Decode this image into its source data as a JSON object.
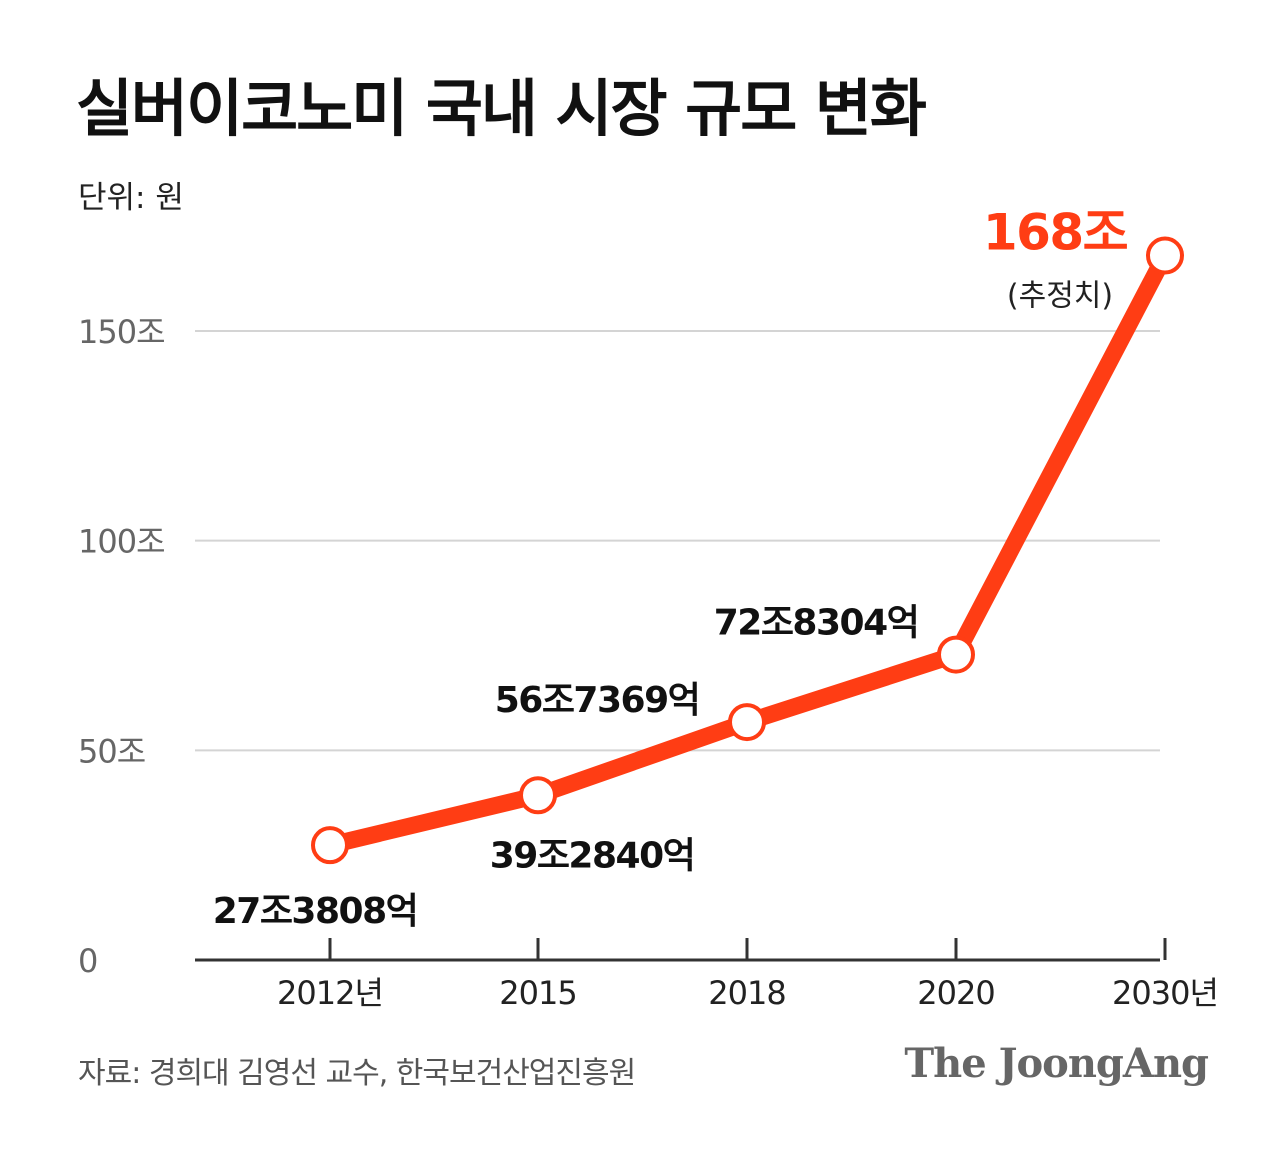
{
  "header": {
    "title": "실버이코노미 국내 시장 규모 변화",
    "unit": "단위: 원"
  },
  "footer": {
    "source": "자료: 경희대 김영선 교수, 한국보건산업진흥원",
    "brand": "The JoongAng"
  },
  "colors": {
    "line": "#ff3d14",
    "highlight": "#ff3d14",
    "grid": "#d4d4d4",
    "axis": "#333333",
    "text": "#111111"
  },
  "chart_data": {
    "type": "line",
    "categories": [
      "2012년",
      "2015",
      "2018",
      "2020",
      "2030년"
    ],
    "series": [
      {
        "values": [
          27.3808,
          39.284,
          56.7369,
          72.8304,
          168
        ]
      }
    ],
    "data_labels": [
      "27조3808억",
      "39조2840억",
      "56조7369억",
      "72조8304억",
      "168조"
    ],
    "highlight_note": "(추정치)",
    "y_ticks": [
      {
        "value": 0,
        "label": "0"
      },
      {
        "value": 50,
        "label": "50조"
      },
      {
        "value": 100,
        "label": "100조"
      },
      {
        "value": 150,
        "label": "150조"
      }
    ],
    "ylim": [
      0,
      168
    ],
    "grid": true
  }
}
